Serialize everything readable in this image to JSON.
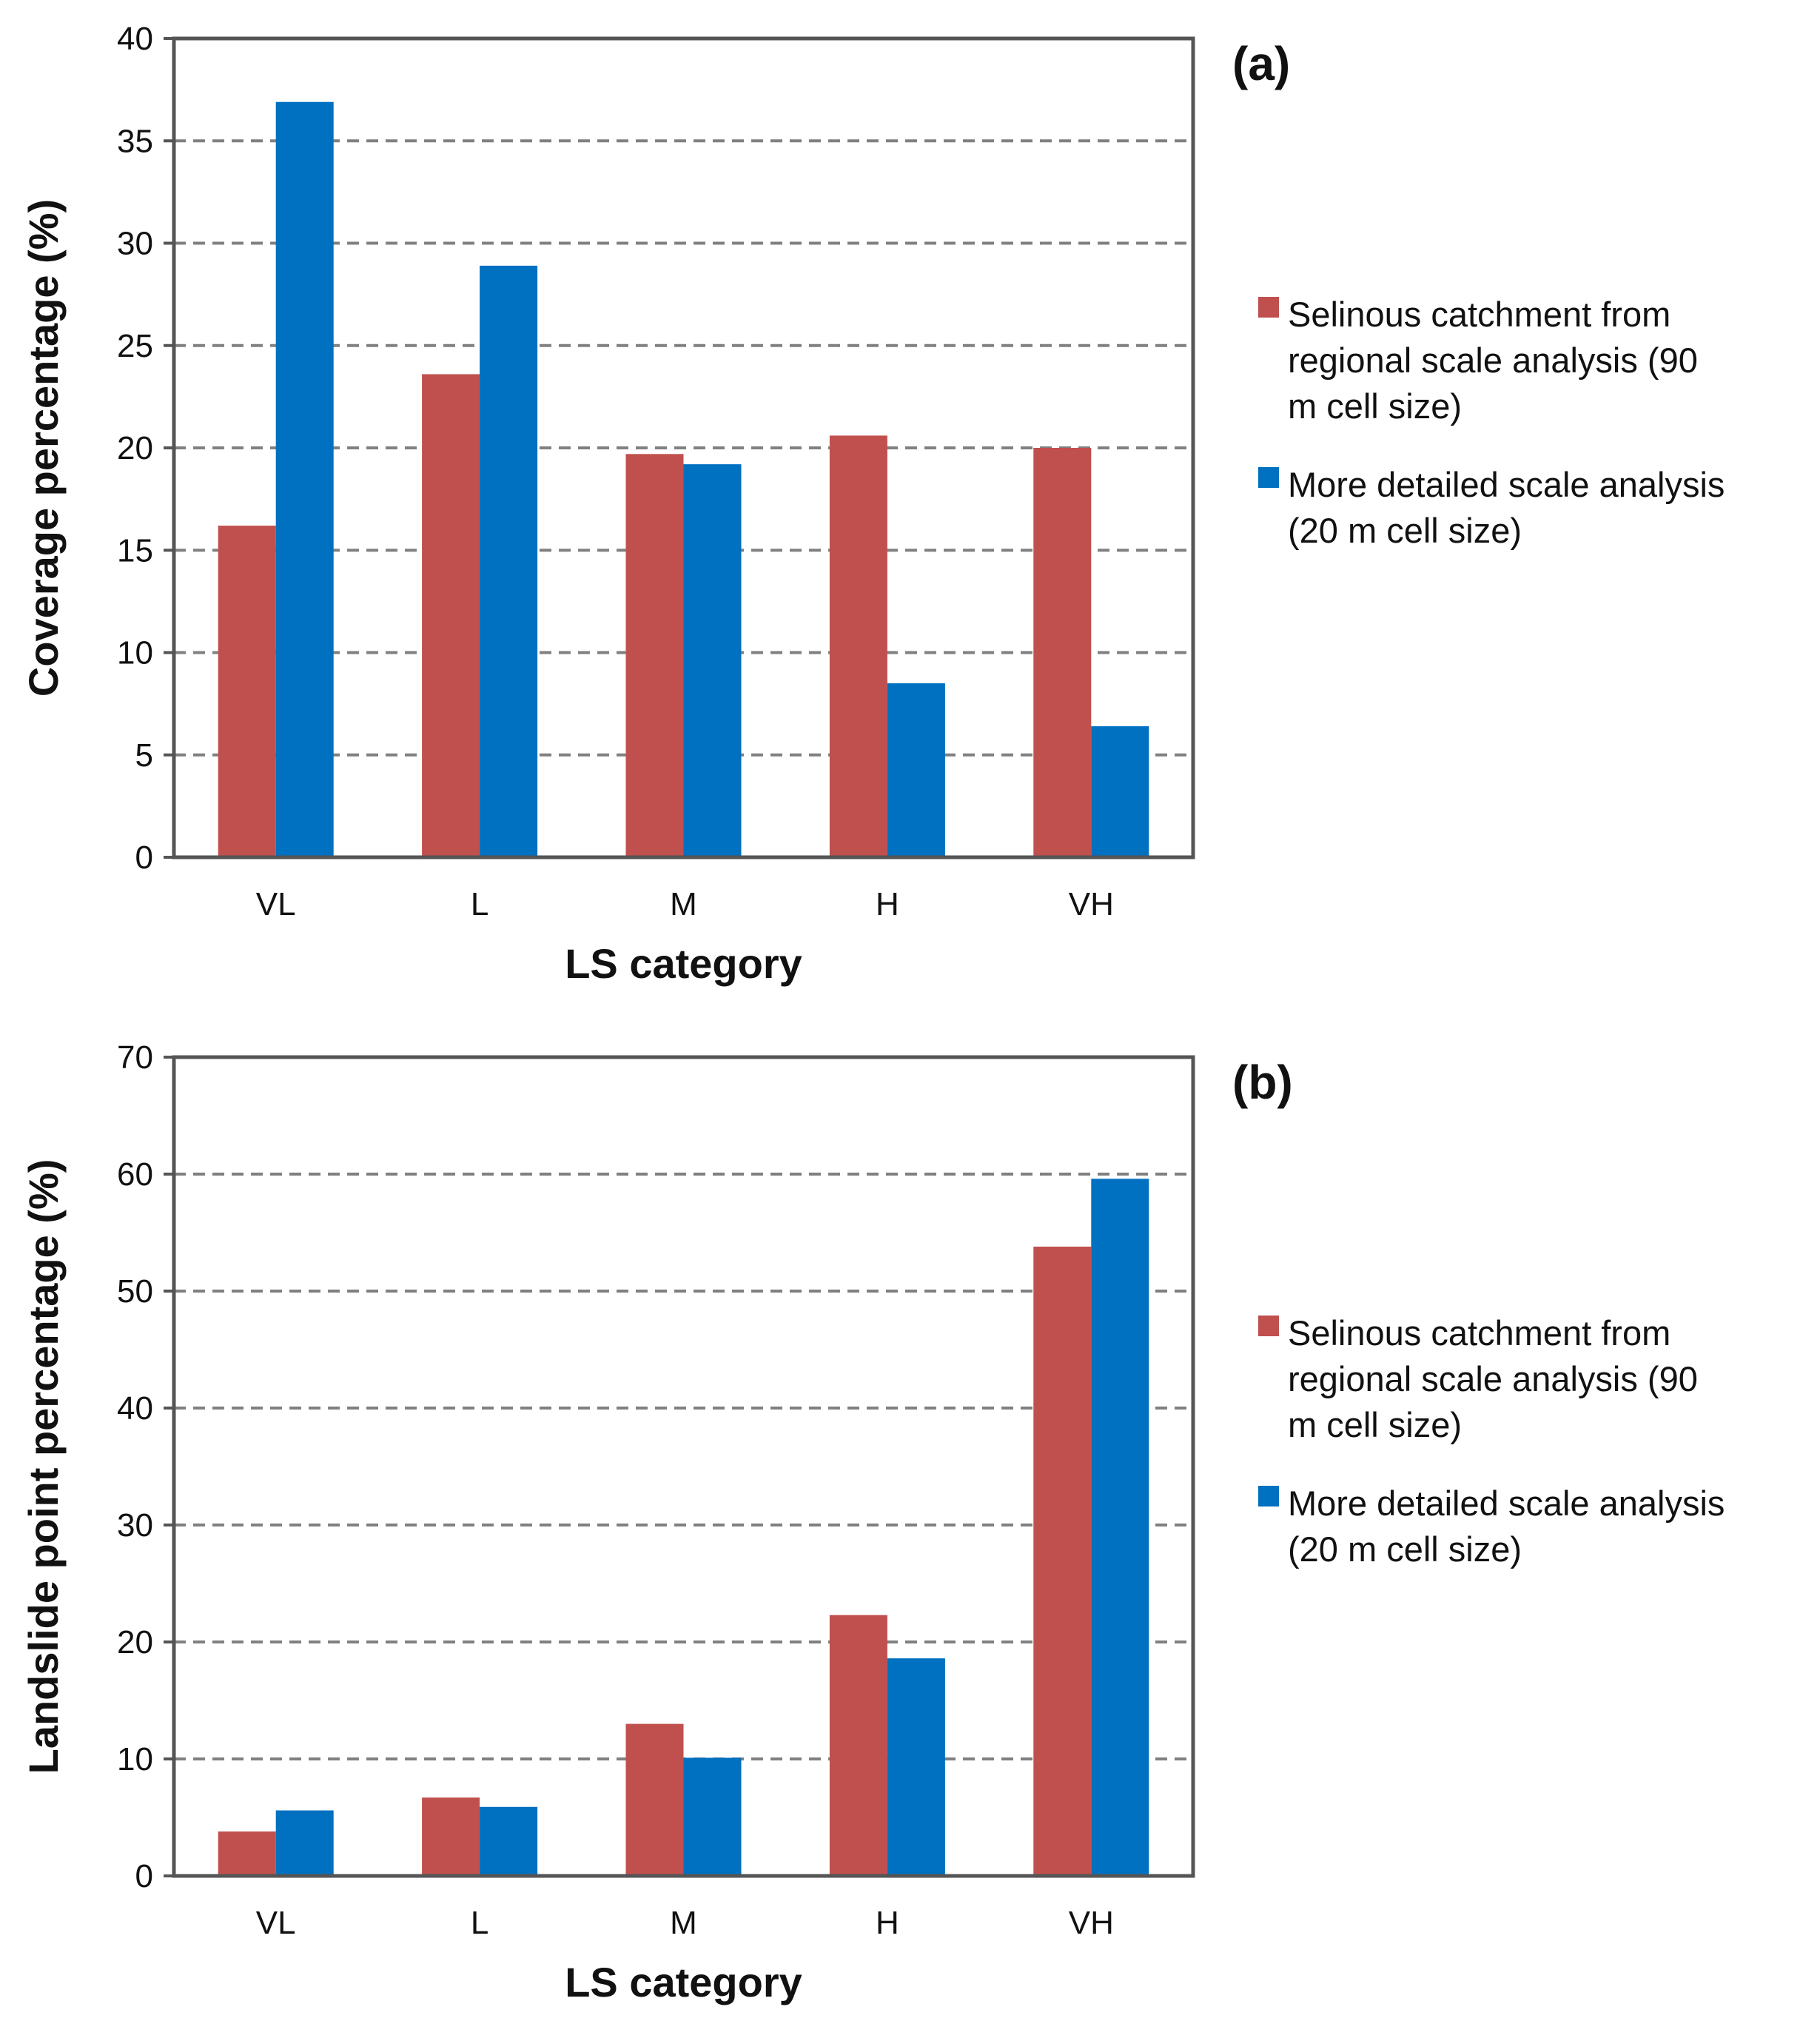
{
  "figure": {
    "panels": [
      {
        "label": "(a)"
      },
      {
        "label": "(b)"
      }
    ]
  },
  "colors": {
    "series1": "#c0504d",
    "series2": "#0070c0",
    "grid": "#808080",
    "axis": "#555555"
  },
  "chart_data": [
    {
      "type": "bar",
      "panel": "(a)",
      "title": "",
      "xlabel": "LS category",
      "ylabel": "Coverage percentage (%)",
      "categories": [
        "VL",
        "L",
        "M",
        "H",
        "VH"
      ],
      "ylim": [
        0,
        40
      ],
      "yticks": [
        "0",
        "5",
        "10",
        "15",
        "20",
        "25",
        "30",
        "35",
        "40"
      ],
      "grid": true,
      "legend_position": "right",
      "series": [
        {
          "name": "Selinous catchment from regional scale analysis (90 m cell size)",
          "legend_lines": [
            "Selinous catchment from",
            "regional scale analysis (90",
            "m cell size)"
          ],
          "values": [
            16.2,
            23.6,
            19.7,
            20.6,
            20.0
          ]
        },
        {
          "name": "More detailed scale analysis (20 m cell size)",
          "legend_lines": [
            "More detailed scale analysis",
            "(20 m cell size)"
          ],
          "values": [
            36.9,
            28.9,
            19.2,
            8.5,
            6.4
          ]
        }
      ]
    },
    {
      "type": "bar",
      "panel": "(b)",
      "title": "",
      "xlabel": "LS category",
      "ylabel": "Landslide point percentage (%)",
      "categories": [
        "VL",
        "L",
        "M",
        "H",
        "VH"
      ],
      "ylim": [
        0,
        70
      ],
      "yticks": [
        "0",
        "10",
        "20",
        "30",
        "40",
        "50",
        "60",
        "70"
      ],
      "grid": true,
      "legend_position": "right",
      "series": [
        {
          "name": "Selinous catchment from regional scale analysis (90 m cell size)",
          "legend_lines": [
            "Selinous catchment from",
            "regional scale analysis (90",
            "m cell size)"
          ],
          "values": [
            3.8,
            6.7,
            13.0,
            22.3,
            53.8
          ]
        },
        {
          "name": "More detailed scale analysis (20 m cell size)",
          "legend_lines": [
            "More detailed scale analysis",
            "(20 m cell size)"
          ],
          "values": [
            5.6,
            5.9,
            10.1,
            18.6,
            59.6
          ]
        }
      ]
    }
  ]
}
